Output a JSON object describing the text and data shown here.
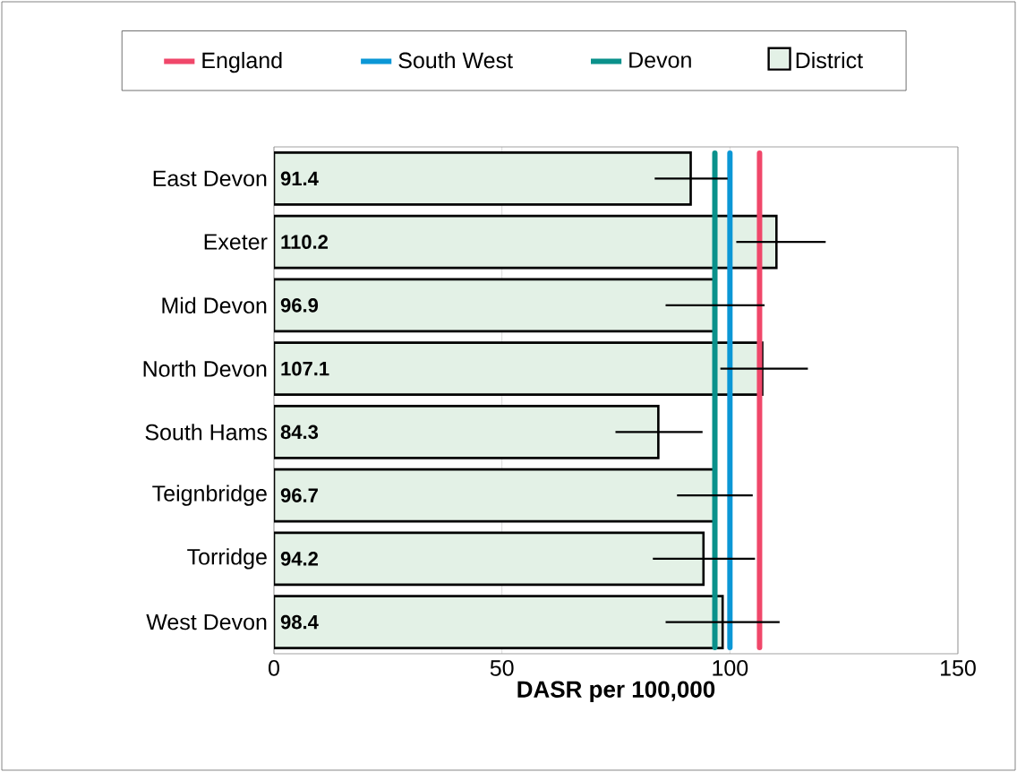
{
  "chart_data": {
    "type": "bar",
    "orientation": "horizontal",
    "xlabel": "DASR per 100,000",
    "categories": [
      "East Devon",
      "Exeter",
      "Mid Devon",
      "North Devon",
      "South Hams",
      "Teignbridge",
      "Torridge",
      "West Devon"
    ],
    "series": [
      {
        "name": "District",
        "color": "#e3f1e6",
        "values": [
          91.4,
          110.2,
          96.9,
          107.1,
          84.3,
          96.7,
          94.2,
          98.4
        ],
        "errors": [
          [
            83.5,
            99.5
          ],
          [
            101.4,
            121.0
          ],
          [
            85.9,
            107.6
          ],
          [
            97.9,
            117.1
          ],
          [
            74.9,
            94.0
          ],
          [
            88.4,
            105.0
          ],
          [
            83.1,
            105.5
          ],
          [
            85.9,
            110.9
          ]
        ],
        "value_labels": [
          "91.4",
          "110.2",
          "96.9",
          "107.1",
          "84.3",
          "96.7",
          "94.2",
          "98.4"
        ]
      }
    ],
    "ref_lines": [
      {
        "axis": "x",
        "value": 106.5,
        "label": "England",
        "color": "#f0476a"
      },
      {
        "axis": "x",
        "value": 100.0,
        "label": "South West",
        "color": "#0b97d6"
      },
      {
        "axis": "x",
        "value": 96.7,
        "label": "Devon",
        "color": "#0a918b"
      }
    ],
    "xlim": [
      0,
      150
    ],
    "xticks": [
      0,
      50,
      100,
      150
    ],
    "grid": "x",
    "legend": "top"
  }
}
